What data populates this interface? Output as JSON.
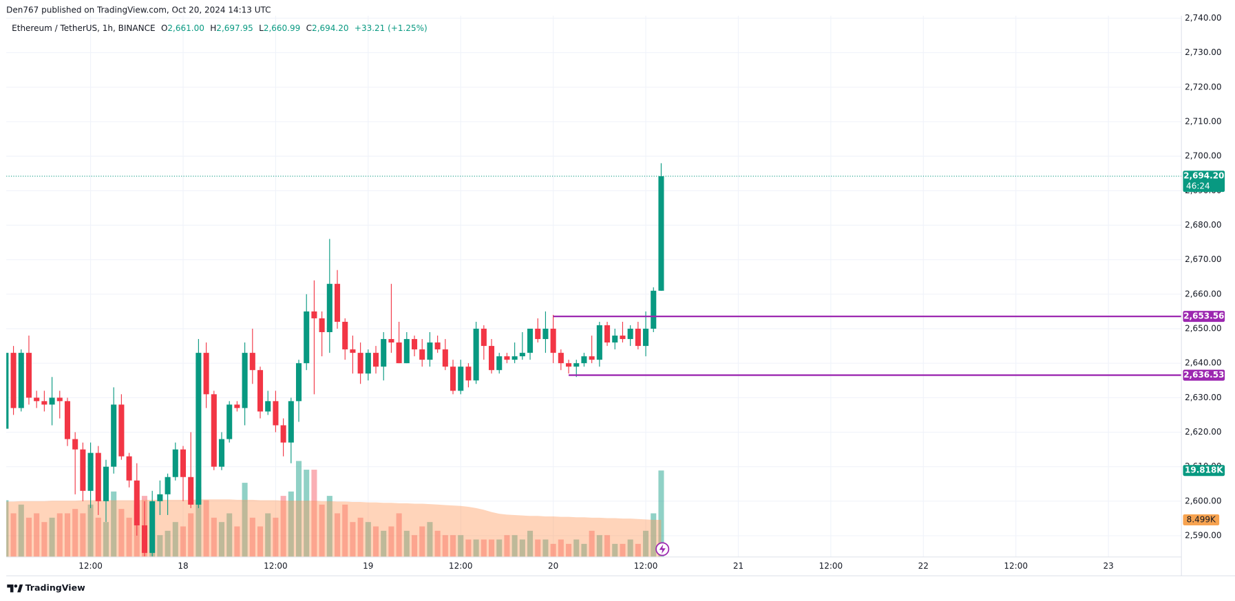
{
  "header": {
    "published": "Den767 published on TradingView.com, Oct 20, 2024 14:13 UTC"
  },
  "footer": {
    "brand": "TradingView"
  },
  "chart_data": {
    "type": "candlestick",
    "legend": {
      "symbol": "Ethereum / TetherUS, 1h, BINANCE",
      "o_label": "O",
      "o": "2,661.00",
      "h_label": "H",
      "h": "2,697.95",
      "l_label": "L",
      "l": "2,660.99",
      "c_label": "C",
      "c": "2,694.20",
      "change": "+33.21 (+1.25%)"
    },
    "up_color": "#089981",
    "down_color": "#f23645",
    "x": [
      1,
      2,
      3,
      4,
      5,
      6,
      7,
      8,
      9,
      10,
      11,
      12,
      13,
      14,
      15,
      16,
      17,
      18,
      19,
      20,
      21,
      22,
      23,
      24,
      25,
      26,
      27,
      28,
      29,
      30,
      31,
      32,
      33,
      34,
      35,
      36,
      37,
      38,
      39,
      40,
      41,
      42,
      43,
      44,
      45,
      46,
      47,
      48,
      49,
      50,
      51,
      52,
      53,
      54,
      55,
      56,
      57,
      58,
      59,
      60,
      61,
      62,
      63,
      64,
      65,
      66,
      67,
      68,
      69,
      70,
      71,
      72,
      73,
      74,
      75,
      76,
      77,
      78,
      79,
      80,
      81,
      82,
      83,
      84,
      85,
      86
    ],
    "open": [
      2621,
      2643,
      2627,
      2643,
      2630,
      2629,
      2628,
      2630,
      2629,
      2618,
      2615,
      2603,
      2614,
      2600,
      2610,
      2628,
      2613,
      2606,
      2593,
      2585,
      2600,
      2602,
      2607,
      2615,
      2607,
      2599,
      2643,
      2631,
      2610,
      2618,
      2628,
      2627,
      2643,
      2638,
      2626,
      2629,
      2622,
      2617,
      2629,
      2640,
      2655,
      2653,
      2649,
      2663,
      2652,
      2644,
      2643,
      2637,
      2643,
      2639,
      2647,
      2646,
      2640,
      2647,
      2644,
      2641,
      2646,
      2644,
      2639,
      2632,
      2639,
      2635,
      2650,
      2645,
      2638,
      2642,
      2641,
      2642,
      2643,
      2650,
      2647,
      2650,
      2643,
      2640,
      2639,
      2640,
      2642,
      2641,
      2651,
      2646,
      2648,
      2647,
      2650,
      2645,
      2650,
      2661
    ],
    "high": [
      2644,
      2645,
      2644,
      2648,
      2632,
      2632,
      2636,
      2632,
      2630,
      2620,
      2617,
      2617,
      2616,
      2612,
      2633,
      2631,
      2614,
      2611,
      2600,
      2603,
      2606,
      2608,
      2617,
      2616,
      2620,
      2647,
      2646,
      2632,
      2620,
      2629,
      2629,
      2646,
      2650,
      2639,
      2632,
      2632,
      2624,
      2630,
      2641,
      2660,
      2664,
      2655,
      2676,
      2667,
      2653,
      2648,
      2646,
      2644,
      2645,
      2649,
      2663,
      2652,
      2649,
      2648,
      2647,
      2649,
      2648,
      2647,
      2641,
      2641,
      2640,
      2652,
      2651,
      2647,
      2643,
      2643,
      2646,
      2649,
      2650,
      2653,
      2655,
      2654,
      2644,
      2641,
      2641,
      2643,
      2648,
      2652,
      2652,
      2650,
      2652,
      2651,
      2652,
      2655,
      2662,
      2697.95
    ],
    "low": [
      2620,
      2625,
      2626,
      2628,
      2627,
      2626,
      2622,
      2624,
      2616,
      2602,
      2600,
      2598,
      2596,
      2594,
      2608,
      2612,
      2604,
      2590,
      2584,
      2584,
      2596,
      2596,
      2606,
      2600,
      2598,
      2598,
      2627,
      2609,
      2609,
      2617,
      2626,
      2622,
      2634,
      2624,
      2625,
      2620,
      2613,
      2611,
      2623,
      2638,
      2631,
      2642,
      2643,
      2650,
      2641,
      2637,
      2634,
      2635,
      2637,
      2635,
      2643,
      2640,
      2640,
      2642,
      2639,
      2639,
      2643,
      2638,
      2631,
      2631,
      2633,
      2634,
      2641,
      2637,
      2637,
      2640,
      2640,
      2641,
      2641,
      2646,
      2643,
      2640,
      2638,
      2637,
      2636,
      2639,
      2640,
      2639,
      2645,
      2644,
      2646,
      2645,
      2644,
      2642,
      2649,
      2660.99
    ],
    "close": [
      2643,
      2627,
      2643,
      2630,
      2629,
      2628,
      2630,
      2629,
      2618,
      2615,
      2603,
      2614,
      2600,
      2610,
      2628,
      2613,
      2606,
      2593,
      2585,
      2600,
      2602,
      2607,
      2615,
      2607,
      2599,
      2643,
      2631,
      2610,
      2618,
      2628,
      2627,
      2643,
      2638,
      2626,
      2629,
      2622,
      2617,
      2629,
      2640,
      2655,
      2653,
      2649,
      2663,
      2652,
      2644,
      2643,
      2637,
      2643,
      2639,
      2647,
      2646,
      2640,
      2647,
      2644,
      2641,
      2646,
      2644,
      2639,
      2632,
      2639,
      2635,
      2650,
      2645,
      2638,
      2642,
      2641,
      2642,
      2643,
      2650,
      2647,
      2650,
      2643,
      2640,
      2639,
      2640,
      2642,
      2641,
      2651,
      2646,
      2648,
      2647,
      2650,
      2645,
      2650,
      2661,
      2694.2
    ],
    "xlim": [
      1.07,
      153.47
    ],
    "xticks": [
      {
        "value": 12,
        "label": "12:00"
      },
      {
        "value": 24,
        "label": "18"
      },
      {
        "value": 36,
        "label": "12:00"
      },
      {
        "value": 48,
        "label": "19"
      },
      {
        "value": 60,
        "label": "12:00"
      },
      {
        "value": 72,
        "label": "20"
      },
      {
        "value": 84,
        "label": "12:00"
      },
      {
        "value": 96,
        "label": "21"
      },
      {
        "value": 108,
        "label": "12:00"
      },
      {
        "value": 120,
        "label": "22"
      },
      {
        "value": 132,
        "label": "12:00"
      },
      {
        "value": 144,
        "label": "23"
      }
    ],
    "ylim": [
      2583.84,
      2740.71
    ],
    "yticks": [
      {
        "value": 2590,
        "label": "2,590.00"
      },
      {
        "value": 2600,
        "label": "2,600.00"
      },
      {
        "value": 2610,
        "label": "2,610.00"
      },
      {
        "value": 2620,
        "label": "2,620.00"
      },
      {
        "value": 2630,
        "label": "2,630.00"
      },
      {
        "value": 2640,
        "label": "2,640.00"
      },
      {
        "value": 2650,
        "label": "2,650.00"
      },
      {
        "value": 2660,
        "label": "2,660.00"
      },
      {
        "value": 2670,
        "label": "2,670.00"
      },
      {
        "value": 2680,
        "label": "2,680.00"
      },
      {
        "value": 2690,
        "label": "2,690.00"
      },
      {
        "value": 2700,
        "label": "2,700.00"
      },
      {
        "value": 2710,
        "label": "2,710.00"
      },
      {
        "value": 2720,
        "label": "2,720.00"
      },
      {
        "value": 2730,
        "label": "2,730.00"
      },
      {
        "value": 2740,
        "label": "2,740.00"
      }
    ],
    "grid": true,
    "volume": {
      "up_color": "rgba(8,153,129,0.45)",
      "down_color": "rgba(242,54,69,0.4)",
      "last_label": "19.818K",
      "values": [
        13,
        10,
        12,
        9,
        10,
        8,
        9,
        10,
        10,
        11,
        10,
        12,
        9,
        8,
        15,
        11,
        9,
        12,
        14,
        6,
        5,
        6,
        8,
        7,
        10,
        16,
        13,
        9,
        8,
        10,
        7,
        17,
        9,
        7,
        10,
        9,
        14,
        15,
        22,
        20,
        20,
        12,
        14,
        10,
        12,
        8,
        9,
        8,
        7,
        6,
        7,
        10,
        6,
        5,
        7,
        8,
        6,
        5,
        5,
        5,
        4,
        4,
        4,
        4,
        4,
        5,
        5,
        4,
        6,
        4,
        4,
        3,
        4,
        3,
        4,
        3,
        6,
        5,
        5,
        3,
        3,
        4,
        3,
        6,
        10,
        19.818
      ]
    },
    "volume_ma": {
      "color": "rgba(255,152,90,0.42)",
      "label_color": "#f7a350",
      "last_label": "8.499K",
      "values": [
        12.7,
        12.7,
        12.8,
        12.8,
        12.8,
        12.8,
        12.9,
        12.9,
        12.9,
        12.9,
        13.0,
        13.0,
        13.0,
        13.0,
        13.0,
        13.0,
        13.0,
        13.0,
        13.1,
        13.1,
        13.1,
        13.1,
        13.1,
        13.1,
        13.1,
        13.2,
        13.2,
        13.2,
        13.2,
        13.2,
        13.1,
        13.1,
        13.1,
        13.0,
        13.0,
        13.0,
        12.9,
        12.9,
        12.9,
        12.9,
        12.9,
        12.8,
        12.8,
        12.7,
        12.7,
        12.6,
        12.6,
        12.5,
        12.5,
        12.4,
        12.4,
        12.3,
        12.3,
        12.2,
        12.2,
        12.1,
        12.0,
        11.9,
        11.8,
        11.7,
        11.5,
        11.2,
        10.8,
        10.3,
        9.9,
        9.7,
        9.6,
        9.5,
        9.4,
        9.4,
        9.3,
        9.3,
        9.2,
        9.2,
        9.1,
        9.1,
        9.0,
        9.0,
        8.9,
        8.9,
        8.8,
        8.8,
        8.7,
        8.6,
        8.5,
        8.499
      ]
    },
    "levels": [
      {
        "value": 2653.56,
        "label": "2,653.56",
        "x": 72,
        "color": "#9c27b0"
      },
      {
        "value": 2636.53,
        "label": "2,636.53",
        "x": 74,
        "color": "#9c27b0"
      }
    ],
    "last_price": {
      "value": 2694.2,
      "label": "2,694.20",
      "countdown": "46:24",
      "color": "#089981"
    }
  }
}
